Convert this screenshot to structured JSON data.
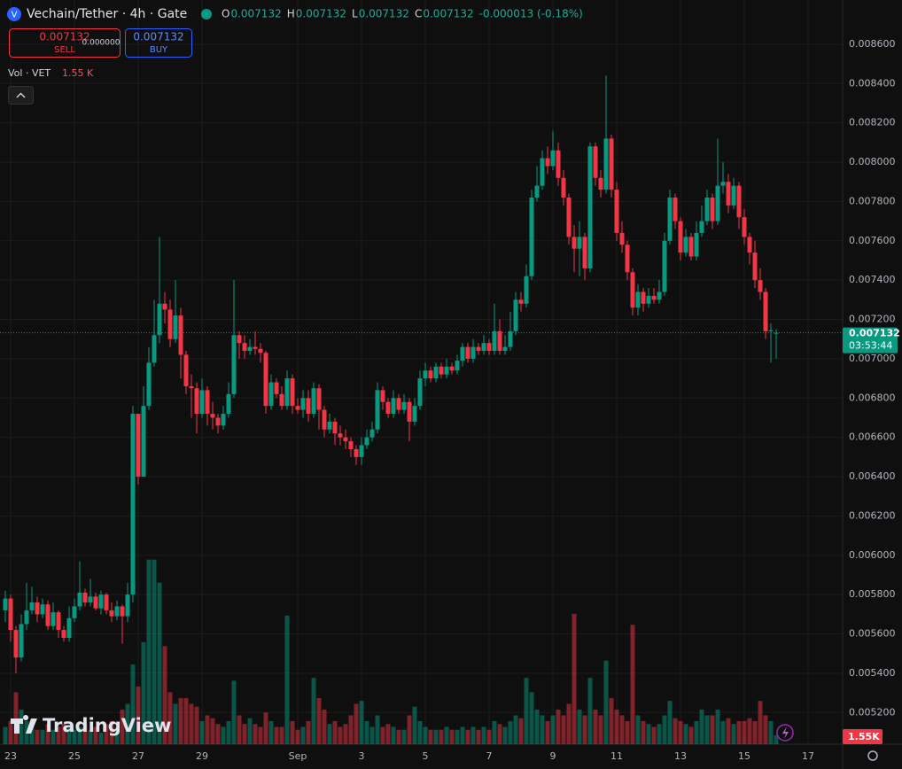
{
  "header": {
    "symbol": "Vechain/Tether · 4h · Gate",
    "ohlc": [
      {
        "key": "O",
        "value": "0.007132"
      },
      {
        "key": "H",
        "value": "0.007132"
      },
      {
        "key": "L",
        "value": "0.007132"
      },
      {
        "key": "C",
        "value": "0.007132"
      }
    ],
    "change": "-0.000013 (-0.18%)"
  },
  "trade": {
    "sell_price": "0.007132",
    "sell_label": "SELL",
    "spread": "0.000000",
    "buy_price": "0.007132",
    "buy_label": "BUY"
  },
  "volume_legend": {
    "title": "Vol · VET",
    "value": "1.55 K"
  },
  "watermark": "TradingView",
  "chart_data": {
    "type": "candlestick",
    "grid": true,
    "up_color": "#089981",
    "down_color": "#f23645",
    "xlim": [
      -1,
      157.5
    ],
    "ylim": [
      0.005039,
      0.008825
    ],
    "vlim": [
      0,
      129000
    ],
    "xticks": [
      {
        "value": 1,
        "label": "23"
      },
      {
        "value": 13,
        "label": "25"
      },
      {
        "value": 25,
        "label": "27"
      },
      {
        "value": 37,
        "label": "29"
      },
      {
        "value": 55,
        "label": "Sep"
      },
      {
        "value": 67,
        "label": "3"
      },
      {
        "value": 79,
        "label": "5"
      },
      {
        "value": 91,
        "label": "7"
      },
      {
        "value": 103,
        "label": "9"
      },
      {
        "value": 115,
        "label": "11"
      },
      {
        "value": 127,
        "label": "13"
      },
      {
        "value": 139,
        "label": "15"
      },
      {
        "value": 151,
        "label": "17"
      }
    ],
    "yticks": [
      {
        "value": 0.0052,
        "label": "0.005200"
      },
      {
        "value": 0.0054,
        "label": "0.005400"
      },
      {
        "value": 0.0056,
        "label": "0.005600"
      },
      {
        "value": 0.0058,
        "label": "0.005800"
      },
      {
        "value": 0.006,
        "label": "0.006000"
      },
      {
        "value": 0.0062,
        "label": "0.006200"
      },
      {
        "value": 0.0064,
        "label": "0.006400"
      },
      {
        "value": 0.0066,
        "label": "0.006600"
      },
      {
        "value": 0.0068,
        "label": "0.006800"
      },
      {
        "value": 0.007,
        "label": "0.007000"
      },
      {
        "value": 0.0072,
        "label": "0.007200"
      },
      {
        "value": 0.0074,
        "label": "0.007400"
      },
      {
        "value": 0.0076,
        "label": "0.007600"
      },
      {
        "value": 0.0078,
        "label": "0.007800"
      },
      {
        "value": 0.008,
        "label": "0.008000"
      },
      {
        "value": 0.0082,
        "label": "0.008200"
      },
      {
        "value": 0.0084,
        "label": "0.008400"
      },
      {
        "value": 0.0086,
        "label": "0.008600"
      }
    ],
    "last_price": 0.007132,
    "countdown": "03:53:44",
    "volume_axis_label": "1.55K",
    "open": [
      0.00572,
      0.00578,
      0.00562,
      0.00548,
      0.00565,
      0.00572,
      0.00576,
      0.0057,
      0.00575,
      0.00564,
      0.00571,
      0.00562,
      0.00558,
      0.00568,
      0.00574,
      0.00581,
      0.00576,
      0.00579,
      0.00573,
      0.0058,
      0.00572,
      0.00569,
      0.00574,
      0.00569,
      0.0058,
      0.00672,
      0.0064,
      0.00676,
      0.00698,
      0.00712,
      0.00728,
      0.00725,
      0.0071,
      0.00722,
      0.00702,
      0.00686,
      0.00685,
      0.00672,
      0.00684,
      0.00672,
      0.0067,
      0.00666,
      0.00672,
      0.00682,
      0.00712,
      0.00708,
      0.00704,
      0.00706,
      0.00705,
      0.00703,
      0.00676,
      0.00688,
      0.00682,
      0.00676,
      0.0069,
      0.00676,
      0.00674,
      0.0068,
      0.00672,
      0.00685,
      0.00674,
      0.00664,
      0.00668,
      0.00662,
      0.0066,
      0.00658,
      0.00654,
      0.0065,
      0.00656,
      0.0066,
      0.00664,
      0.00684,
      0.00678,
      0.00672,
      0.0068,
      0.00674,
      0.00678,
      0.00668,
      0.00676,
      0.0069,
      0.00694,
      0.0069,
      0.00696,
      0.00692,
      0.00696,
      0.00694,
      0.00699,
      0.00706,
      0.007,
      0.00706,
      0.00704,
      0.00708,
      0.00704,
      0.00714,
      0.00704,
      0.00706,
      0.00714,
      0.0073,
      0.00728,
      0.00742,
      0.00782,
      0.00788,
      0.00802,
      0.00798,
      0.00806,
      0.00792,
      0.00782,
      0.00762,
      0.00756,
      0.00762,
      0.00746,
      0.00808,
      0.00792,
      0.00786,
      0.00812,
      0.00786,
      0.00764,
      0.00758,
      0.00744,
      0.00726,
      0.00734,
      0.00728,
      0.00732,
      0.0073,
      0.00734,
      0.0076,
      0.00782,
      0.0077,
      0.00754,
      0.00762,
      0.00752,
      0.00764,
      0.0077,
      0.00782,
      0.0077,
      0.00788,
      0.0079,
      0.00778,
      0.00788,
      0.00772,
      0.00762,
      0.00754,
      0.0074,
      0.00734,
      0.00714,
      0.007132
    ],
    "high": [
      0.00582,
      0.0058,
      0.00564,
      0.0057,
      0.00586,
      0.00584,
      0.00579,
      0.00578,
      0.00577,
      0.00576,
      0.00572,
      0.00564,
      0.00574,
      0.00578,
      0.00597,
      0.00583,
      0.00588,
      0.00581,
      0.00582,
      0.00581,
      0.00576,
      0.00577,
      0.00575,
      0.00586,
      0.00676,
      0.00672,
      0.00686,
      0.00706,
      0.0073,
      0.00762,
      0.00734,
      0.0073,
      0.0074,
      0.00726,
      0.00704,
      0.00692,
      0.00688,
      0.0069,
      0.00686,
      0.00678,
      0.00672,
      0.00676,
      0.00688,
      0.0074,
      0.00714,
      0.00712,
      0.0071,
      0.00714,
      0.00708,
      0.00704,
      0.00692,
      0.0069,
      0.00686,
      0.00694,
      0.00692,
      0.0068,
      0.00684,
      0.00684,
      0.00688,
      0.00687,
      0.00676,
      0.00672,
      0.0067,
      0.00666,
      0.00664,
      0.0066,
      0.00656,
      0.0066,
      0.00664,
      0.00668,
      0.00688,
      0.00686,
      0.0068,
      0.00684,
      0.00682,
      0.00682,
      0.0068,
      0.0068,
      0.00694,
      0.00698,
      0.00696,
      0.00698,
      0.00698,
      0.007,
      0.00698,
      0.00702,
      0.00708,
      0.00708,
      0.0071,
      0.00708,
      0.00712,
      0.0071,
      0.00728,
      0.0072,
      0.00712,
      0.00724,
      0.00734,
      0.00734,
      0.00748,
      0.00786,
      0.00798,
      0.00806,
      0.00808,
      0.00816,
      0.0081,
      0.00796,
      0.00784,
      0.00768,
      0.0077,
      0.00764,
      0.0081,
      0.0081,
      0.00796,
      0.00844,
      0.00814,
      0.0079,
      0.0077,
      0.0076,
      0.00746,
      0.00738,
      0.00736,
      0.00736,
      0.00736,
      0.0074,
      0.00764,
      0.00786,
      0.00784,
      0.00772,
      0.00766,
      0.00764,
      0.0077,
      0.00778,
      0.00786,
      0.00784,
      0.00812,
      0.008,
      0.00794,
      0.00792,
      0.0079,
      0.00776,
      0.00764,
      0.0076,
      0.00746,
      0.00736,
      0.00718,
      0.00715
    ],
    "low": [
      0.00566,
      0.00556,
      0.0054,
      0.00546,
      0.00562,
      0.0057,
      0.00566,
      0.00568,
      0.00562,
      0.00562,
      0.00558,
      0.00556,
      0.00556,
      0.00566,
      0.00572,
      0.00574,
      0.00574,
      0.00572,
      0.0057,
      0.0057,
      0.00566,
      0.00567,
      0.00555,
      0.00566,
      0.00576,
      0.00636,
      0.0064,
      0.00674,
      0.00696,
      0.00708,
      0.00718,
      0.00706,
      0.00708,
      0.0069,
      0.00682,
      0.0067,
      0.00662,
      0.0067,
      0.00666,
      0.00664,
      0.00662,
      0.00664,
      0.0067,
      0.0068,
      0.007,
      0.007,
      0.00702,
      0.00702,
      0.00698,
      0.00672,
      0.00674,
      0.0068,
      0.00674,
      0.00674,
      0.00672,
      0.00672,
      0.0067,
      0.00668,
      0.0067,
      0.00664,
      0.0066,
      0.00662,
      0.00656,
      0.00656,
      0.00654,
      0.0065,
      0.00646,
      0.00646,
      0.00654,
      0.00658,
      0.00662,
      0.00674,
      0.0067,
      0.0067,
      0.00672,
      0.00672,
      0.00658,
      0.00666,
      0.00674,
      0.00686,
      0.00688,
      0.00688,
      0.0069,
      0.0069,
      0.00692,
      0.00692,
      0.00696,
      0.00698,
      0.00698,
      0.00702,
      0.00702,
      0.00702,
      0.00702,
      0.00702,
      0.00702,
      0.00704,
      0.00712,
      0.00724,
      0.00726,
      0.0074,
      0.0078,
      0.00786,
      0.00794,
      0.00796,
      0.00788,
      0.00778,
      0.00758,
      0.00744,
      0.00742,
      0.0074,
      0.00744,
      0.00788,
      0.00782,
      0.00784,
      0.00782,
      0.0076,
      0.00754,
      0.0074,
      0.00722,
      0.00722,
      0.00724,
      0.00726,
      0.00728,
      0.00728,
      0.00732,
      0.00758,
      0.00766,
      0.0075,
      0.00752,
      0.0075,
      0.0075,
      0.00762,
      0.00768,
      0.00766,
      0.00768,
      0.00784,
      0.00774,
      0.00776,
      0.00766,
      0.00758,
      0.00748,
      0.00736,
      0.0073,
      0.0071,
      0.00698,
      0.007
    ],
    "close": [
      0.00578,
      0.00562,
      0.00548,
      0.00565,
      0.00572,
      0.00576,
      0.0057,
      0.00575,
      0.00564,
      0.00571,
      0.00562,
      0.00558,
      0.00568,
      0.00574,
      0.00581,
      0.00576,
      0.00579,
      0.00573,
      0.0058,
      0.00572,
      0.00569,
      0.00574,
      0.00569,
      0.0058,
      0.00672,
      0.0064,
      0.00676,
      0.00698,
      0.00712,
      0.00728,
      0.00725,
      0.0071,
      0.00722,
      0.00702,
      0.00686,
      0.00685,
      0.00672,
      0.00684,
      0.00672,
      0.0067,
      0.00666,
      0.00672,
      0.00682,
      0.00712,
      0.00708,
      0.00704,
      0.00706,
      0.00705,
      0.00703,
      0.00676,
      0.00688,
      0.00682,
      0.00676,
      0.0069,
      0.00676,
      0.00674,
      0.0068,
      0.00672,
      0.00685,
      0.00674,
      0.00664,
      0.00668,
      0.00662,
      0.0066,
      0.00658,
      0.00654,
      0.0065,
      0.00656,
      0.0066,
      0.00664,
      0.00684,
      0.00678,
      0.00672,
      0.0068,
      0.00674,
      0.00678,
      0.00668,
      0.00676,
      0.0069,
      0.00694,
      0.0069,
      0.00696,
      0.00692,
      0.00696,
      0.00694,
      0.00699,
      0.00706,
      0.007,
      0.00706,
      0.00704,
      0.00708,
      0.00704,
      0.00714,
      0.00704,
      0.00706,
      0.00714,
      0.0073,
      0.00728,
      0.00742,
      0.00782,
      0.00788,
      0.00802,
      0.00798,
      0.00806,
      0.00792,
      0.00782,
      0.00762,
      0.00756,
      0.00762,
      0.00746,
      0.00808,
      0.00792,
      0.00786,
      0.00812,
      0.00786,
      0.00764,
      0.00758,
      0.00744,
      0.00726,
      0.00734,
      0.00728,
      0.00732,
      0.0073,
      0.00734,
      0.0076,
      0.00782,
      0.0077,
      0.00754,
      0.00762,
      0.00752,
      0.00764,
      0.0077,
      0.00782,
      0.0077,
      0.00788,
      0.0079,
      0.00778,
      0.00788,
      0.00772,
      0.00762,
      0.00754,
      0.0074,
      0.00734,
      0.00714,
      0.007145,
      0.007132
    ],
    "volume": [
      3000,
      4000,
      9000,
      6000,
      4000,
      3000,
      2500,
      2500,
      3500,
      2500,
      3000,
      3500,
      3000,
      2500,
      3000,
      3500,
      2500,
      3000,
      2000,
      3500,
      4000,
      3000,
      6000,
      7000,
      13800,
      10000,
      17700,
      32000,
      32000,
      28000,
      17000,
      9000,
      7000,
      8000,
      8000,
      7000,
      6500,
      4000,
      5000,
      4500,
      3500,
      3000,
      4000,
      11000,
      5000,
      3500,
      4500,
      3500,
      3000,
      5500,
      4000,
      3000,
      3000,
      22300,
      4000,
      2500,
      3000,
      4000,
      11500,
      8000,
      6000,
      3500,
      4000,
      3000,
      3500,
      5000,
      7000,
      7500,
      4000,
      3000,
      5000,
      3000,
      3500,
      3000,
      2500,
      2500,
      5000,
      6500,
      4000,
      3000,
      2500,
      2500,
      2500,
      3000,
      2500,
      2500,
      3000,
      2500,
      3000,
      2500,
      3000,
      2500,
      4000,
      3500,
      3000,
      4000,
      5000,
      4500,
      11500,
      9000,
      6000,
      5000,
      4000,
      5000,
      6000,
      5000,
      7000,
      22600,
      6000,
      5000,
      11500,
      6000,
      5000,
      14500,
      8000,
      6000,
      5000,
      4000,
      20700,
      5000,
      4000,
      3500,
      3000,
      3500,
      5000,
      7500,
      4500,
      4000,
      3500,
      3000,
      4000,
      6000,
      5000,
      5000,
      6000,
      4000,
      4500,
      3500,
      4000,
      4000,
      4500,
      4000,
      7500,
      5000,
      4000,
      1550
    ]
  }
}
